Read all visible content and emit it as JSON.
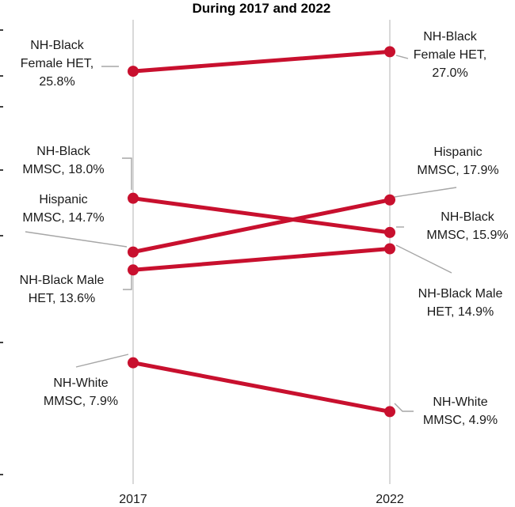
{
  "chart_data": {
    "type": "line",
    "title": "During 2017 and 2022",
    "categories": [
      "2017",
      "2022"
    ],
    "ylim": [
      0,
      30
    ],
    "grid": "vertical lines at each year",
    "colors": {
      "line": "#c8102e",
      "grid": "#d9d9d9",
      "leader": "#a6a6a6"
    },
    "series": [
      {
        "id": "nhbf",
        "values": [
          25.8,
          27.0
        ],
        "label_2017": [
          "NH-Black",
          "Female HET,",
          "25.8%"
        ],
        "label_2022": [
          "NH-Black",
          "Female HET,",
          "27.0%"
        ]
      },
      {
        "id": "nhbm",
        "values": [
          18.0,
          15.9
        ],
        "label_2017": [
          "NH-Black",
          "MMSC, 18.0%"
        ],
        "label_2022": [
          "NH-Black",
          "MMSC, 15.9%"
        ]
      },
      {
        "id": "hisp",
        "values": [
          14.7,
          17.9
        ],
        "label_2017": [
          "Hispanic",
          "MMSC, 14.7%"
        ],
        "label_2022": [
          "Hispanic",
          "MMSC, 17.9%"
        ]
      },
      {
        "id": "nhbmh",
        "values": [
          13.6,
          14.9
        ],
        "label_2017": [
          "NH-Black Male",
          "HET, 13.6%"
        ],
        "label_2022": [
          "NH-Black Male",
          "HET, 14.9%"
        ]
      },
      {
        "id": "nhw",
        "values": [
          7.9,
          4.9
        ],
        "label_2017": [
          "NH-White",
          "MMSC, 7.9%"
        ],
        "label_2022": [
          "NH-White",
          "MMSC, 4.9%"
        ]
      }
    ]
  }
}
